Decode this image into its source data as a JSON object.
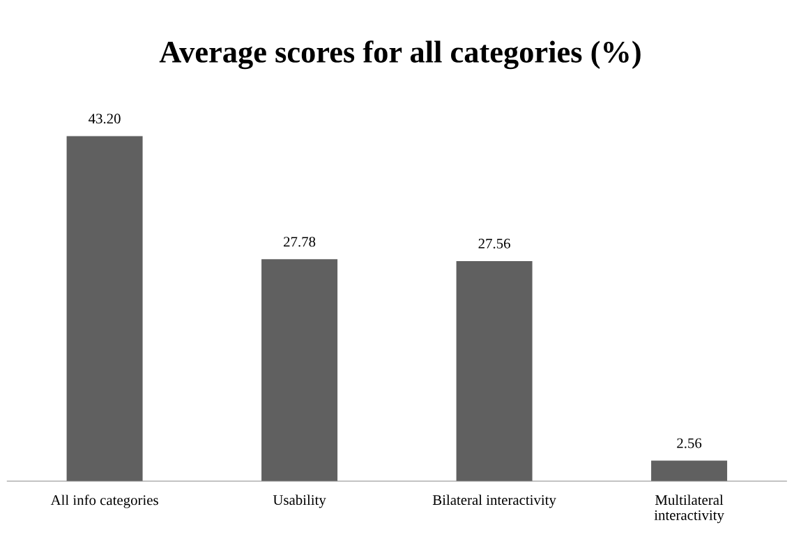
{
  "chart_data": {
    "type": "bar",
    "title": "Average scores for all categories (%)",
    "categories": [
      "All info categories",
      "Usability",
      "Bilateral interactivity",
      "Multilateral\ninteractivity"
    ],
    "values": [
      43.2,
      27.78,
      27.56,
      2.56
    ],
    "value_labels": [
      "43.20",
      "27.78",
      "27.56",
      "2.56"
    ],
    "color": "#606060",
    "grid": false,
    "legend": false
  }
}
